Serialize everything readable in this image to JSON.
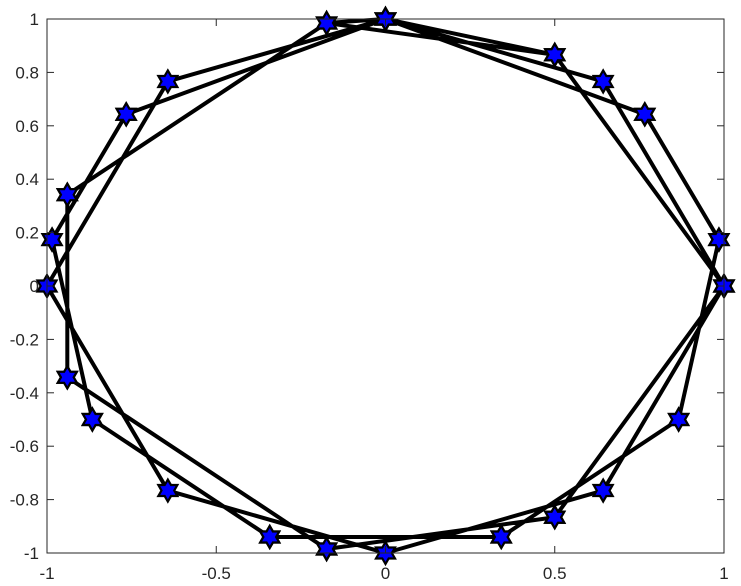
{
  "chart_data": {
    "type": "line",
    "title": "",
    "xlabel": "",
    "ylabel": "",
    "xlim": [
      -1,
      1
    ],
    "ylim": [
      -1,
      1
    ],
    "grid": false,
    "x_ticks": [
      {
        "value": -1,
        "label": "-1"
      },
      {
        "value": -0.5,
        "label": "-0.5"
      },
      {
        "value": 0,
        "label": "0"
      },
      {
        "value": 0.5,
        "label": "0.5"
      },
      {
        "value": 1,
        "label": "1"
      }
    ],
    "y_ticks": [
      {
        "value": 1,
        "label": "1"
      },
      {
        "value": 0.8,
        "label": "0.8"
      },
      {
        "value": 0.6,
        "label": "0.6"
      },
      {
        "value": 0.4,
        "label": "0.4"
      },
      {
        "value": 0.2,
        "label": "0.2"
      },
      {
        "value": 0,
        "label": "0"
      },
      {
        "value": -0.2,
        "label": "-0.2"
      },
      {
        "value": -0.4,
        "label": "-0.4"
      },
      {
        "value": -0.6,
        "label": "-0.6"
      },
      {
        "value": -0.8,
        "label": "-0.8"
      },
      {
        "value": -1,
        "label": "-1"
      }
    ],
    "series": [
      {
        "line_color": "#000000",
        "marker": "hexagram",
        "marker_face_color": "#0000ff",
        "marker_edge_color": "#000000",
        "x": [
          0,
          0.766,
          0.985,
          0.866,
          0.342,
          -0.342,
          -0.866,
          -0.985,
          -0.766,
          0,
          0.766,
          0.985,
          0.866,
          0.342,
          -0.342,
          -0.866,
          -0.985,
          -0.766,
          0,
          0.643,
          1,
          0.643,
          0,
          -0.643,
          -1,
          -0.643,
          0,
          0.5,
          1,
          0.5,
          -0.174,
          -0.94,
          -0.94,
          -0.174,
          0.5,
          1,
          0.5,
          -0.174,
          -0.94,
          -0.94,
          -0.174,
          0
        ],
        "y": [
          1,
          0.643,
          0.174,
          -0.5,
          -0.94,
          -0.94,
          -0.5,
          0.174,
          0.643,
          1,
          0.643,
          0.174,
          -0.5,
          -0.94,
          -0.94,
          -0.5,
          0.174,
          0.643,
          1,
          0.766,
          0,
          -0.766,
          -1,
          -0.766,
          0,
          0.766,
          1,
          0.866,
          0,
          -0.866,
          -0.985,
          -0.342,
          0.342,
          0.985,
          0.866,
          0,
          -0.866,
          -0.985,
          -0.342,
          0.342,
          0.985,
          1
        ]
      }
    ]
  }
}
